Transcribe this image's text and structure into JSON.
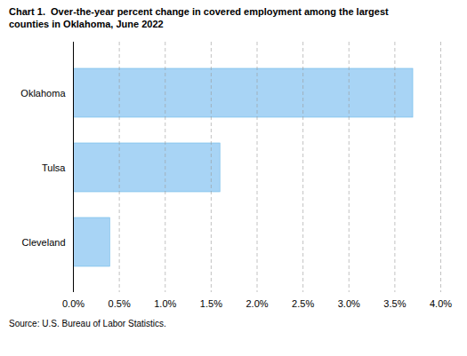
{
  "chart_data": {
    "type": "bar",
    "orientation": "horizontal",
    "title": "Chart 1.  Over-the-year percent change in covered employment among the largest\ncounties in Oklahoma, June 2022",
    "source": "Source: U.S. Bureau of Labor Statistics.",
    "categories": [
      "Cleveland",
      "Tulsa",
      "Oklahoma"
    ],
    "values": [
      0.004,
      0.016,
      0.037
    ],
    "color": "#a8d4f5",
    "xlim": [
      0,
      0.04
    ],
    "xticks": [
      {
        "value": 0.0,
        "label": "0.0%"
      },
      {
        "value": 0.005,
        "label": "0.5%"
      },
      {
        "value": 0.01,
        "label": "1.0%"
      },
      {
        "value": 0.015,
        "label": "1.5%"
      },
      {
        "value": 0.02,
        "label": "2.0%"
      },
      {
        "value": 0.025,
        "label": "2.5%"
      },
      {
        "value": 0.03,
        "label": "3.0%"
      },
      {
        "value": 0.035,
        "label": "3.5%"
      },
      {
        "value": 0.04,
        "label": "4.0%"
      }
    ],
    "grid": true
  }
}
